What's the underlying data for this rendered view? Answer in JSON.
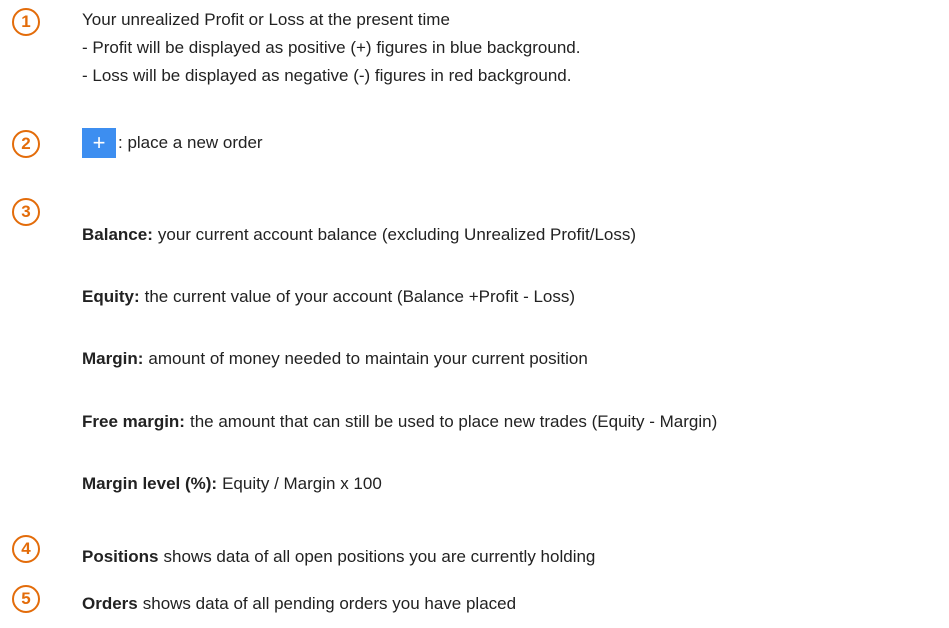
{
  "items": [
    {
      "number": "1",
      "lines": [
        "Your unrealized Profit or Loss at the present time",
        "- Profit will be displayed as positive (+) figures in blue background.",
        "- Loss will be displayed as negative (-) figures in red background."
      ]
    },
    {
      "number": "2",
      "icon": "+",
      "text": ": place a new order"
    },
    {
      "number": "3",
      "definitions": [
        {
          "term": "Balance:",
          "text": "your current account balance (excluding Unrealized Profit/Loss)"
        },
        {
          "term": "Equity:",
          "text": "the current value of your account (Balance +Profit - Loss)"
        },
        {
          "term": "Margin:",
          "text": "amount of money needed to maintain your current position"
        },
        {
          "term": "Free margin:",
          "text": "the amount that can still be used to place new trades (Equity - Margin)"
        },
        {
          "term": "Margin level (%):",
          "text": "Equity / Margin x 100"
        }
      ]
    },
    {
      "number": "4",
      "term": "Positions",
      "text": "shows data of all open positions you are currently holding"
    },
    {
      "number": "5",
      "term": "Orders",
      "text": "shows data of all pending orders you have placed"
    }
  ]
}
